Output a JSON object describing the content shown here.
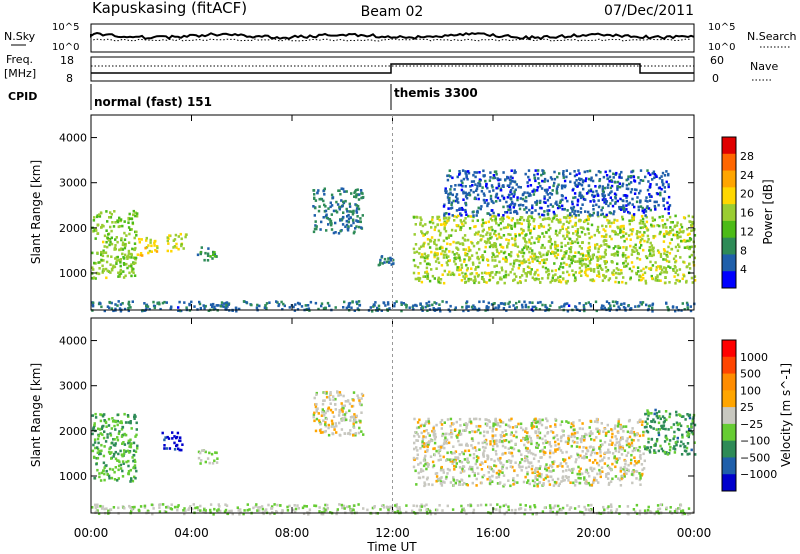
{
  "header": {
    "station": "Kapuskasing (fitACF)",
    "beam": "Beam 02",
    "date": "07/Dec/2011"
  },
  "top_panels": {
    "nsky_label": "N.Sky",
    "nsky_ticks": [
      "10^5",
      "10^0"
    ],
    "nsearch_label": "N.Search",
    "nsearch_ticks": [
      "10^5",
      "10^0"
    ],
    "freq_label": "Freq.",
    "freq_unit": "[MHz]",
    "freq_ticks": [
      "18",
      "8"
    ],
    "nave_label": "Nave",
    "nave_ticks": [
      "60",
      "0"
    ],
    "cpid_label": "CPID",
    "cpid_segments": [
      {
        "name": "normal (fast) 151",
        "start_hour": 0,
        "end_hour": 12
      },
      {
        "name": "themis 3300",
        "start_hour": 12,
        "end_hour": 24
      }
    ]
  },
  "chart_data": [
    {
      "type": "heatmap",
      "title": "",
      "xlabel": "",
      "ylabel": "Slant Range [km]",
      "x_ticks": [
        "00:00",
        "04:00",
        "08:00",
        "12:00",
        "16:00",
        "20:00",
        "00:00"
      ],
      "x_range_hours": [
        0,
        24
      ],
      "y_ticks": [
        1000,
        2000,
        3000,
        4000
      ],
      "ylim": [
        180,
        4500
      ],
      "colorbar": {
        "label": "Power [dB]",
        "tick_labels": [
          "28",
          "24",
          "20",
          "16",
          "12",
          "8",
          "4"
        ],
        "range": [
          0,
          30
        ],
        "colors": [
          "#e00000",
          "#ff6600",
          "#ffa500",
          "#ffd700",
          "#9acd32",
          "#4cbb17",
          "#2e8b57",
          "#1f5faa",
          "#0000ff"
        ]
      },
      "echo_regions": [
        {
          "t0": 0.0,
          "t1": 1.8,
          "r0": 900,
          "r1": 2400,
          "value": 14
        },
        {
          "t0": 1.8,
          "t1": 2.6,
          "r0": 1400,
          "r1": 1800,
          "value": 18
        },
        {
          "t0": 3.0,
          "t1": 3.8,
          "r0": 1500,
          "r1": 1900,
          "value": 16
        },
        {
          "t0": 4.2,
          "t1": 5.0,
          "r0": 1300,
          "r1": 1600,
          "value": 9
        },
        {
          "t0": 8.8,
          "t1": 10.8,
          "r0": 1900,
          "r1": 2900,
          "value": 7
        },
        {
          "t0": 11.4,
          "t1": 12.0,
          "r0": 1200,
          "r1": 1400,
          "value": 7
        },
        {
          "t0": 12.8,
          "t1": 24.0,
          "r0": 800,
          "r1": 2300,
          "value": 15
        },
        {
          "t0": 14.0,
          "t1": 23.0,
          "r0": 2300,
          "r1": 3300,
          "value": 5
        },
        {
          "t0": 0.0,
          "t1": 24.0,
          "r0": 180,
          "r1": 400,
          "value": 6
        }
      ]
    },
    {
      "type": "heatmap",
      "title": "",
      "xlabel": "Time UT",
      "ylabel": "Slant Range [km]",
      "x_ticks": [
        "00:00",
        "04:00",
        "08:00",
        "12:00",
        "16:00",
        "20:00",
        "00:00"
      ],
      "x_range_hours": [
        0,
        24
      ],
      "y_ticks": [
        1000,
        2000,
        3000,
        4000
      ],
      "ylim": [
        180,
        4500
      ],
      "colorbar": {
        "label": "Velocity [m s^-1]",
        "tick_labels": [
          "1000",
          "500",
          "100",
          "25",
          "−25",
          "−100",
          "−500",
          "−1000"
        ],
        "range": [
          -1000,
          1000
        ],
        "colors": [
          "#ff0000",
          "#ff4500",
          "#ff8c00",
          "#ffa500",
          "#c8c8c0",
          "#66cc33",
          "#2e8b57",
          "#1f5faa",
          "#0000cc"
        ]
      },
      "echo_regions": [
        {
          "t0": 0.0,
          "t1": 1.8,
          "r0": 900,
          "r1": 2400,
          "value": -300
        },
        {
          "t0": 2.8,
          "t1": 3.6,
          "r0": 1600,
          "r1": 2000,
          "value": -900
        },
        {
          "t0": 4.2,
          "t1": 5.0,
          "r0": 1300,
          "r1": 1600,
          "value": -150
        },
        {
          "t0": 8.8,
          "t1": 10.8,
          "r0": 1900,
          "r1": 2900,
          "value": 0
        },
        {
          "t0": 12.8,
          "t1": 22.0,
          "r0": 800,
          "r1": 2300,
          "value": 0
        },
        {
          "t0": 22.0,
          "t1": 24.0,
          "r0": 1500,
          "r1": 2500,
          "value": -400
        },
        {
          "t0": 0.0,
          "t1": 24.0,
          "r0": 180,
          "r1": 400,
          "value": -100
        }
      ]
    }
  ]
}
